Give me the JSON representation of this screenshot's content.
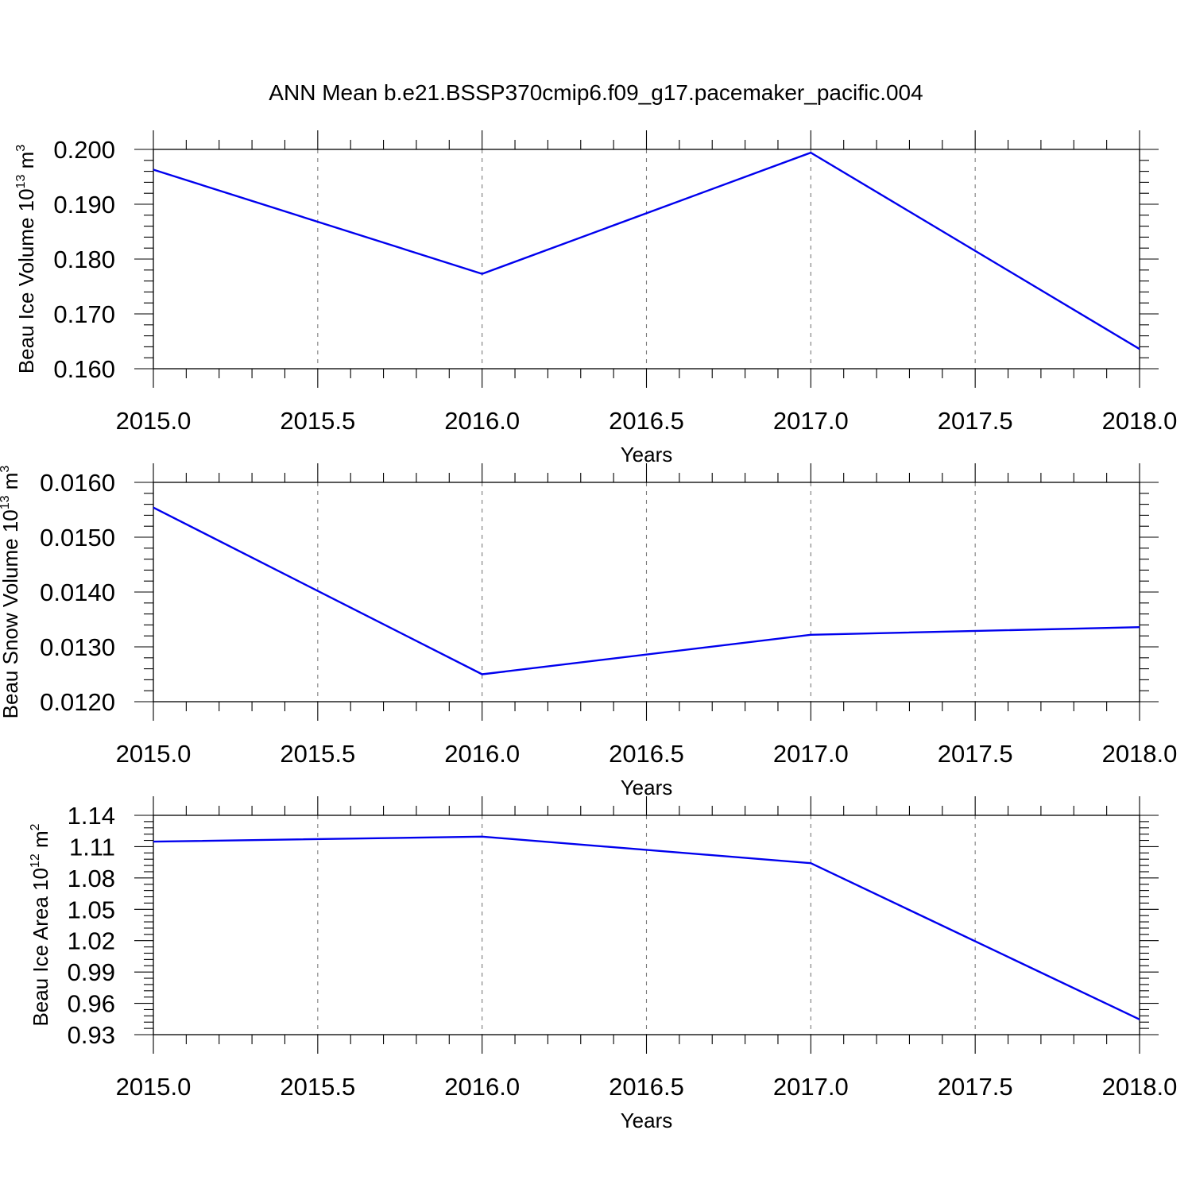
{
  "figure": {
    "title": "ANN Mean b.e21.BSSP370cmip6.f09_g17.pacemaker_pacific.004"
  },
  "colors": {
    "line": "#0000ee",
    "grid": "#7a7a7a",
    "axes": "#000000",
    "background": "#ffffff"
  },
  "chart_data": [
    {
      "type": "line",
      "ylabel": {
        "text": "Beau Ice Volume 10",
        "sup1": "13",
        "mid": " m",
        "sup2": "3"
      },
      "xlabel": "Years",
      "x": [
        2015.0,
        2016.0,
        2017.0,
        2018.0
      ],
      "series": [
        {
          "values": [
            0.1963,
            0.1773,
            0.1994,
            0.1636
          ]
        }
      ],
      "xlim": [
        2015.0,
        2018.0
      ],
      "ylim": [
        0.16,
        0.2
      ],
      "xticks": [
        "2015.0",
        "2015.5",
        "2016.0",
        "2016.5",
        "2017.0",
        "2017.5",
        "2018.0"
      ],
      "yticks": [
        "0.160",
        "0.170",
        "0.180",
        "0.190",
        "0.200"
      ],
      "grid": "vertical dashed at major x ticks"
    },
    {
      "type": "line",
      "ylabel": {
        "text": "Beau Snow Volume 10",
        "sup1": "13",
        "mid": " m",
        "sup2": "3"
      },
      "xlabel": "Years",
      "x": [
        2015.0,
        2016.0,
        2017.0,
        2018.0
      ],
      "series": [
        {
          "values": [
            0.01554,
            0.0125,
            0.01322,
            0.01336
          ]
        }
      ],
      "xlim": [
        2015.0,
        2018.0
      ],
      "ylim": [
        0.012,
        0.016
      ],
      "xticks": [
        "2015.0",
        "2015.5",
        "2016.0",
        "2016.5",
        "2017.0",
        "2017.5",
        "2018.0"
      ],
      "yticks": [
        "0.0120",
        "0.0130",
        "0.0140",
        "0.0150",
        "0.0160"
      ],
      "grid": "vertical dashed at major x ticks"
    },
    {
      "type": "line",
      "ylabel": {
        "text": "Beau Ice Area 10",
        "sup1": "12",
        "mid": " m",
        "sup2": "2"
      },
      "xlabel": "Years",
      "x": [
        2015.0,
        2016.0,
        2017.0,
        2018.0
      ],
      "series": [
        {
          "values": [
            1.1148,
            1.1196,
            1.0942,
            0.9446
          ]
        }
      ],
      "xlim": [
        2015.0,
        2018.0
      ],
      "ylim": [
        0.93,
        1.14
      ],
      "xticks": [
        "2015.0",
        "2015.5",
        "2016.0",
        "2016.5",
        "2017.0",
        "2017.5",
        "2018.0"
      ],
      "yticks": [
        "0.93",
        "0.96",
        "0.99",
        "1.02",
        "1.05",
        "1.08",
        "1.11",
        "1.14"
      ],
      "grid": "vertical dashed at major x ticks"
    }
  ]
}
